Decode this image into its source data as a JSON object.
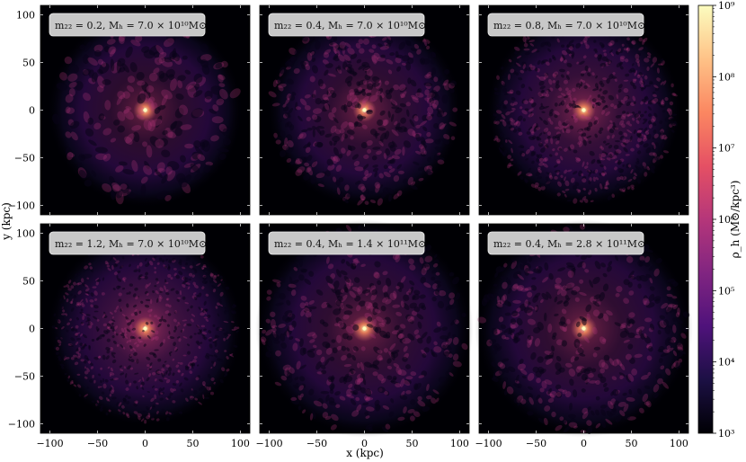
{
  "chart_data": {
    "type": "heatmap",
    "xlabel": "x  (kpc)",
    "ylabel": "y (kpc)",
    "xlim": [
      -110,
      110
    ],
    "ylim": [
      -110,
      110
    ],
    "x_ticks": [
      -100,
      -50,
      0,
      50,
      100
    ],
    "y_ticks": [
      100,
      50,
      0,
      -50,
      -100
    ],
    "x_tick_labels": [
      "−100",
      "−50",
      "0",
      "50",
      "100"
    ],
    "y_tick_labels": [
      "100",
      "50",
      "0",
      "−50",
      "−100"
    ],
    "colormap": "magma",
    "colorbar": {
      "label": "ρ_h (M⊙/kpc³)",
      "scale": "log",
      "min": 1000,
      "max": 1000000000,
      "ticks": [
        "10³",
        "10⁴",
        "10⁵",
        "10⁶",
        "10⁷",
        "10⁸",
        "10⁹"
      ]
    },
    "panels": [
      {
        "label": "m₂₂ = 0.2, Mₕ = 7.0 × 10¹⁰M⊙",
        "m22": 0.2,
        "Mh": 70000000000.0
      },
      {
        "label": "m₂₂ = 0.4, Mₕ = 7.0 × 10¹⁰M⊙",
        "m22": 0.4,
        "Mh": 70000000000.0
      },
      {
        "label": "m₂₂ = 0.8, Mₕ = 7.0 × 10¹⁰M⊙",
        "m22": 0.8,
        "Mh": 70000000000.0
      },
      {
        "label": "m₂₂ = 1.2, Mₕ = 7.0 × 10¹⁰M⊙",
        "m22": 1.2,
        "Mh": 70000000000.0
      },
      {
        "label": "m₂₂ = 0.4, Mₕ = 1.4 × 10¹¹M⊙",
        "m22": 0.4,
        "Mh": 140000000000.0
      },
      {
        "label": "m₂₂ = 0.4, Mₕ = 2.8 × 10¹¹M⊙",
        "m22": 0.4,
        "Mh": 280000000000.0
      }
    ]
  },
  "colors": {
    "magma_stops": [
      "#000004",
      "#1c1044",
      "#4f127b",
      "#812581",
      "#b5367a",
      "#e55064",
      "#fb8761",
      "#fec287",
      "#fcfdbf"
    ],
    "panel_background": "#000004",
    "label_box": "#c8c8c8"
  }
}
